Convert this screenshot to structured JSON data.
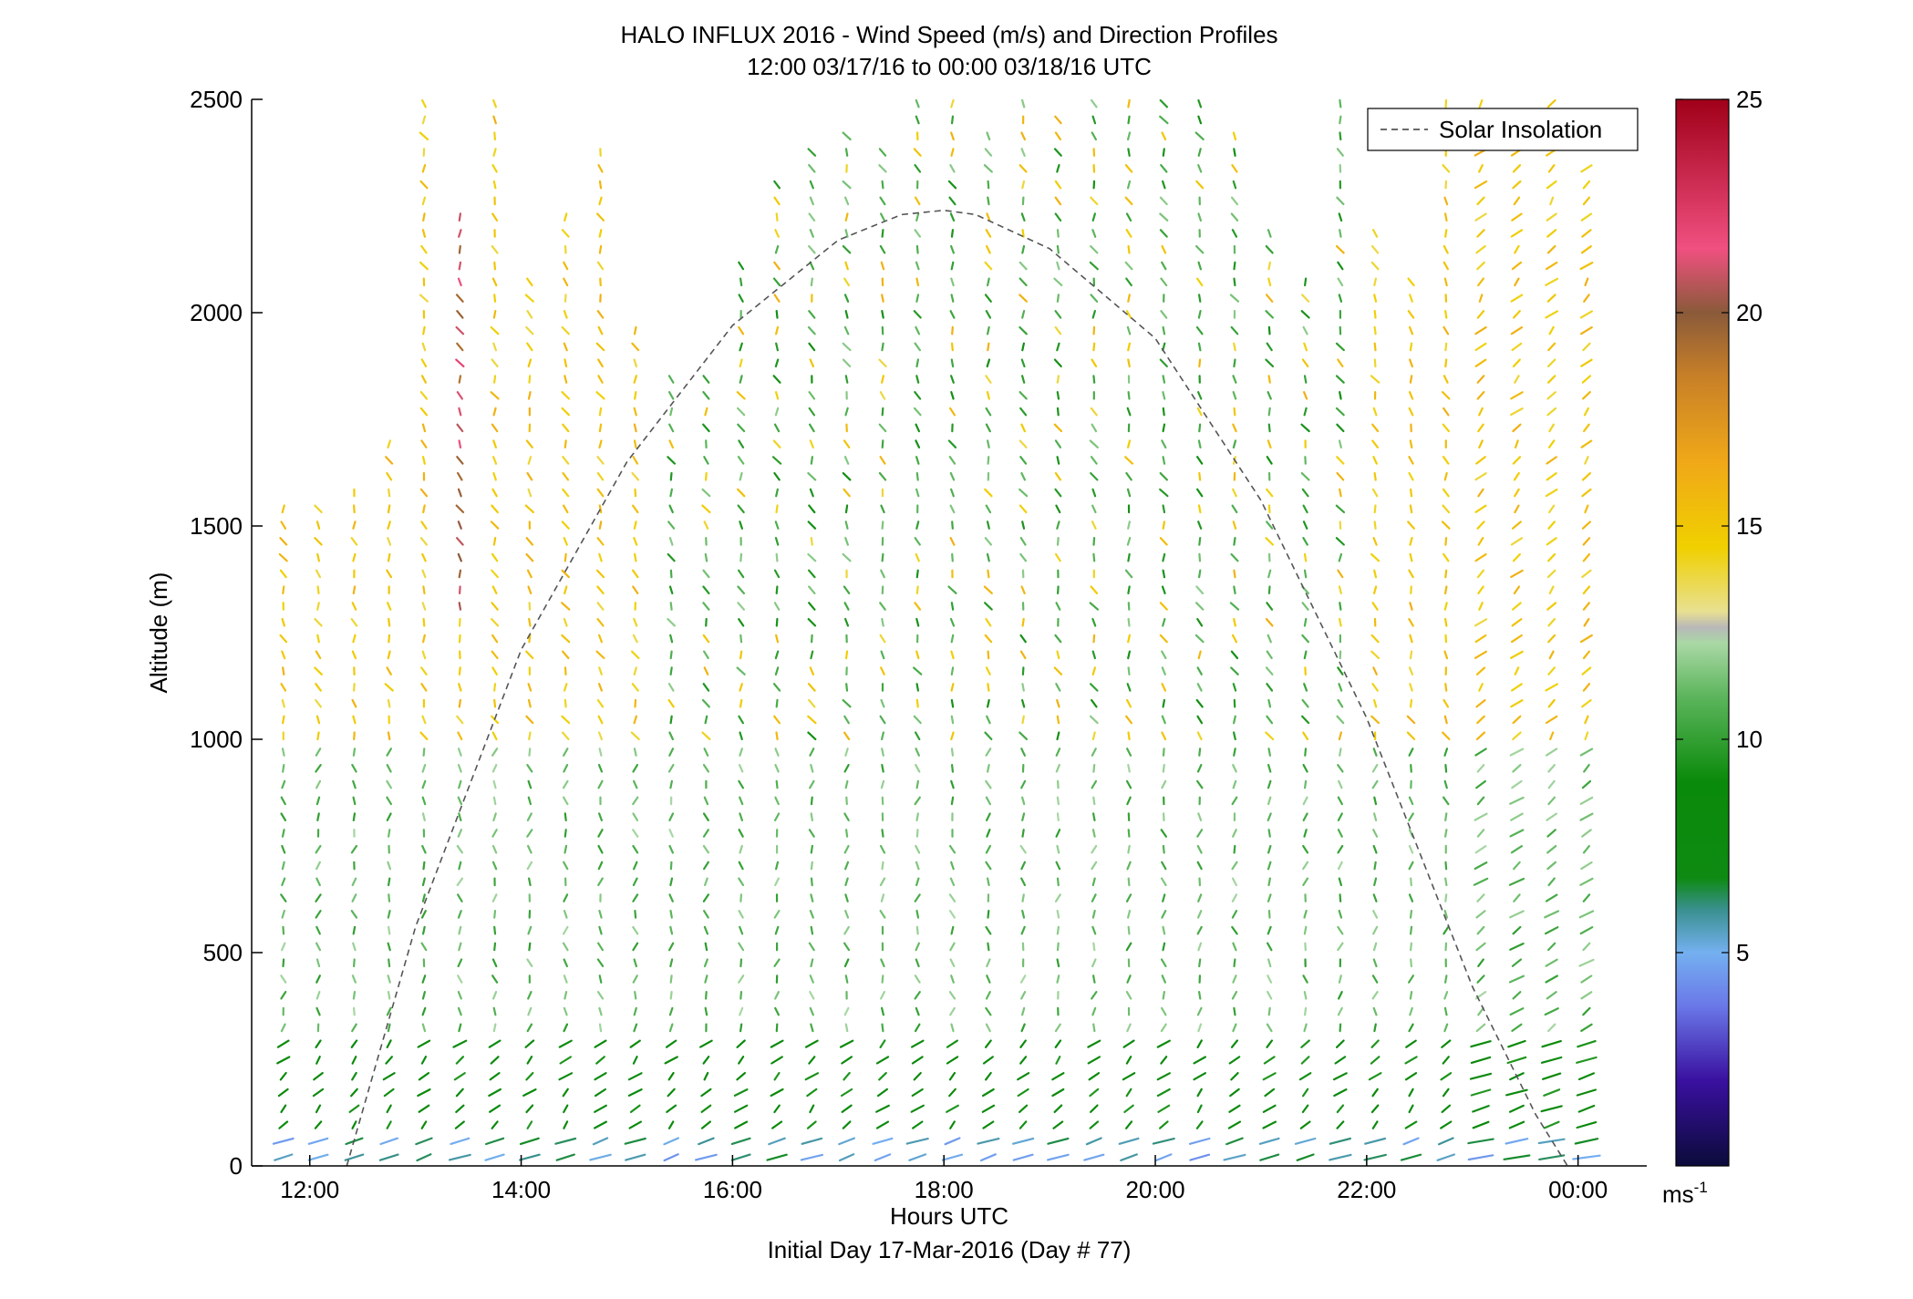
{
  "chart_data": {
    "type": "wind-barb profile",
    "title_line1": "HALO INFLUX 2016 - Wind Speed (m/s) and Direction Profiles",
    "title_line2": "12:00 03/17/16 to 00:00 03/18/16  UTC",
    "xlabel": "Hours UTC",
    "subtitle": "Initial Day 17-Mar-2016 (Day # 77)",
    "ylabel": "Altitude (m)",
    "x_ticks": [
      "12:00",
      "14:00",
      "16:00",
      "18:00",
      "20:00",
      "22:00",
      "00:00"
    ],
    "x_tick_hours": [
      12,
      14,
      16,
      18,
      20,
      22,
      24
    ],
    "xlim_hours": [
      11.45,
      24.65
    ],
    "y_ticks": [
      0,
      500,
      1000,
      1500,
      2000,
      2500
    ],
    "ylim": [
      0,
      2500
    ],
    "legend": {
      "label": "Solar Insolation",
      "placement": "top-right"
    },
    "colorbar": {
      "ticks": [
        5,
        10,
        15,
        20,
        25
      ],
      "range": [
        0,
        25
      ],
      "unit_base": "ms",
      "unit_sup": "-1"
    },
    "solar_insolation": {
      "hours": [
        12.35,
        13.0,
        14.0,
        15.0,
        16.0,
        17.0,
        17.6,
        18.0,
        18.3,
        19.0,
        20.0,
        21.0,
        22.0,
        23.0,
        23.6,
        24.0,
        24.35
      ],
      "altitude_m": [
        0,
        560,
        1210,
        1650,
        1970,
        2170,
        2230,
        2240,
        2230,
        2150,
        1940,
        1560,
        1050,
        420,
        120,
        -40,
        -140
      ]
    },
    "profile_hours": [
      11.75,
      12.08,
      12.42,
      12.75,
      13.08,
      13.42,
      13.75,
      14.08,
      14.42,
      14.75,
      15.08,
      15.42,
      15.75,
      16.08,
      16.42,
      16.75,
      17.08,
      17.42,
      17.75,
      18.08,
      18.42,
      18.75,
      19.08,
      19.42,
      19.75,
      20.08,
      20.42,
      20.75,
      21.08,
      21.42,
      21.75,
      22.08,
      22.42,
      22.75,
      23.08,
      23.42,
      23.75,
      24.08
    ],
    "profile_top_m": [
      1540,
      1540,
      1600,
      1710,
      2500,
      2250,
      2500,
      2080,
      2250,
      2380,
      1960,
      1860,
      1860,
      2130,
      2320,
      2380,
      2450,
      2400,
      2500,
      2500,
      2450,
      2500,
      2480,
      2500,
      2500,
      2500,
      2500,
      2450,
      2200,
      2100,
      2500,
      2200,
      2100,
      2500,
      2500,
      2480,
      2500,
      2340
    ],
    "speed_regimes": [
      {
        "below_m": 60,
        "speed_ms": 5.5,
        "dir_deg": 235
      },
      {
        "below_m": 300,
        "speed_ms": 8.5,
        "dir_deg": 255
      },
      {
        "below_m": 1000,
        "speed_ms": 11,
        "dir_deg": 270
      },
      {
        "below_m": 2500,
        "speed_ms": 15,
        "dir_deg": 275
      }
    ],
    "vector_spacing_m": 38
  }
}
